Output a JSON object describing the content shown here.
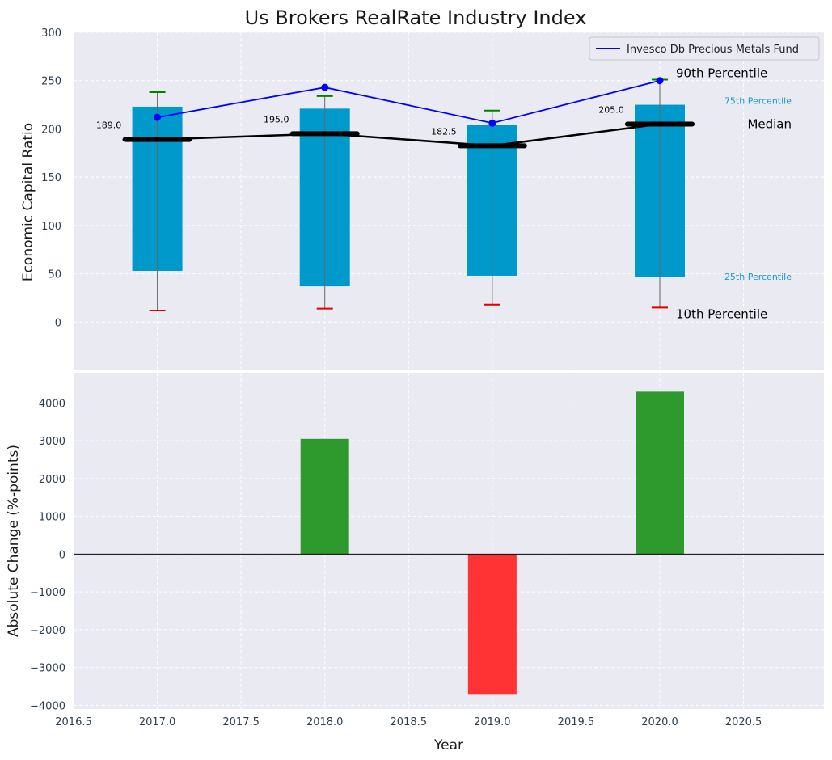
{
  "chart_data": [
    {
      "type": "box",
      "title": "Us Brokers RealRate Industry Index",
      "ylabel": "Economic Capital Ratio",
      "ylim": [
        -50,
        300
      ],
      "yticks": [
        0,
        50,
        100,
        150,
        200,
        250,
        300
      ],
      "x": [
        2017,
        2018,
        2019,
        2020
      ],
      "p10": [
        12,
        14,
        18,
        15
      ],
      "p25": [
        53,
        37,
        48,
        47
      ],
      "median": [
        189.0,
        195.0,
        182.5,
        205.0
      ],
      "median_labels": [
        "189.0",
        "195.0",
        "182.5",
        "205.0"
      ],
      "p75": [
        223,
        221,
        204,
        225
      ],
      "p90": [
        238,
        234,
        219,
        251
      ],
      "series": [
        {
          "name": "Invesco Db Precious Metals Fund",
          "values": [
            212,
            243,
            206,
            250
          ]
        }
      ],
      "legend": "top-right",
      "annotations": {
        "p90": "90th Percentile",
        "p75": "75th Percentile",
        "median": "Median",
        "p25": "25th Percentile",
        "p10": "10th Percentile"
      },
      "grid": true
    },
    {
      "type": "bar",
      "xlabel": "Year",
      "ylabel": "Absolute Change (%-points)",
      "x": [
        2017,
        2018,
        2019,
        2020
      ],
      "values": [
        0,
        3050,
        -3700,
        4300
      ],
      "ylim": [
        -4100,
        4800
      ],
      "yticks": [
        -4000,
        -3000,
        -2000,
        -1000,
        0,
        1000,
        2000,
        3000,
        4000
      ],
      "ytick_labels": [
        "−4000",
        "−3000",
        "−2000",
        "−1000",
        "0",
        "1000",
        "2000",
        "3000",
        "4000"
      ],
      "xlim": [
        2016.5,
        2020.98
      ],
      "xticks": [
        2016.5,
        2017.0,
        2017.5,
        2018.0,
        2018.5,
        2019.0,
        2019.5,
        2020.0,
        2020.5
      ],
      "xtick_labels": [
        "2016.5",
        "2017.0",
        "2017.5",
        "2018.0",
        "2018.5",
        "2019.0",
        "2019.5",
        "2020.0",
        "2020.5"
      ],
      "grid": true
    }
  ],
  "colors": {
    "background": "#ffffff",
    "panel": "#eaeaf2",
    "box": "#0099cc",
    "line": "#0000ff",
    "median_line": "#000000",
    "p90_cap": "#008000",
    "p10_cap": "#e00000",
    "positive": "#2e9a2e",
    "negative": "#ff3333",
    "annotation_75_25": "#1a9ac8"
  }
}
